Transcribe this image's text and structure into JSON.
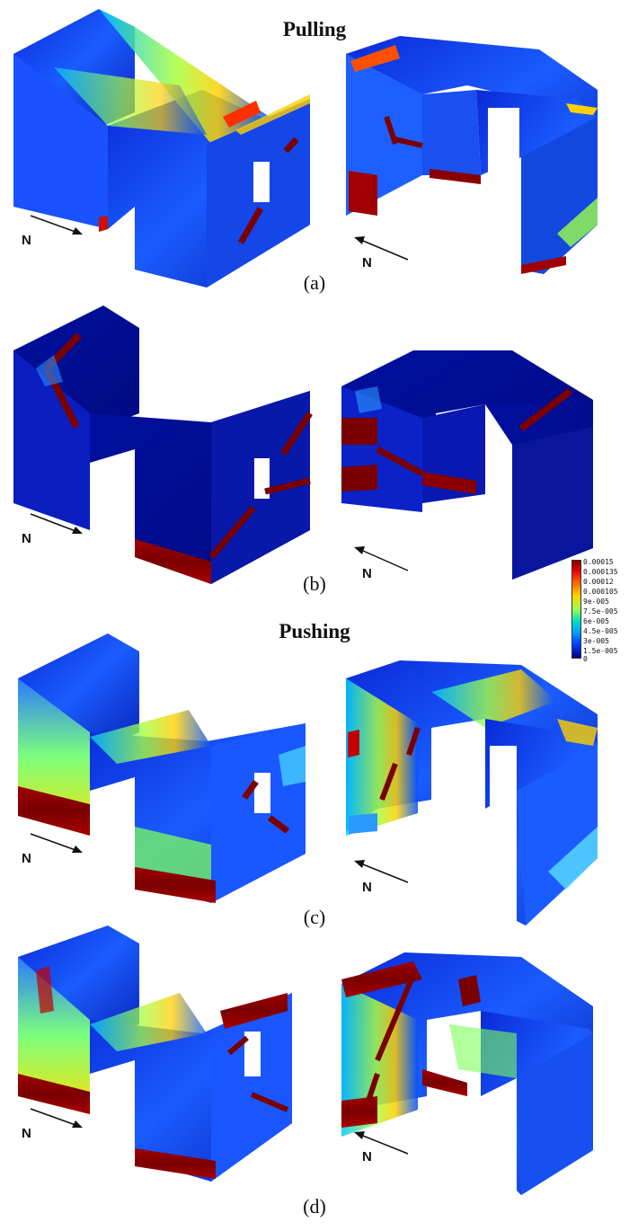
{
  "headings": {
    "pulling": "Pulling",
    "pushing": "Pushing"
  },
  "panels": [
    {
      "id": "a",
      "caption": "(a)",
      "north_left": "N",
      "north_right": "N"
    },
    {
      "id": "b",
      "caption": "(b)",
      "north_left": "N",
      "north_right": "N"
    },
    {
      "id": "c",
      "caption": "(c)",
      "north_left": "N",
      "north_right": "N"
    },
    {
      "id": "d",
      "caption": "(d)",
      "north_left": "N",
      "north_right": "N"
    }
  ],
  "legend": {
    "labels": [
      "0.00015",
      "0.000135",
      "0.00012",
      "0.000105",
      "9e-005",
      "7.5e-005",
      "6e-005",
      "4.5e-005",
      "3e-005",
      "1.5e-005",
      "0"
    ],
    "colors": {
      "max": "#8b0000",
      "high": "#ff2000",
      "mid_high": "#ffd000",
      "mid": "#9cff4a",
      "mid_low": "#00c0ff",
      "low": "#0040ff",
      "min": "#000080"
    }
  }
}
